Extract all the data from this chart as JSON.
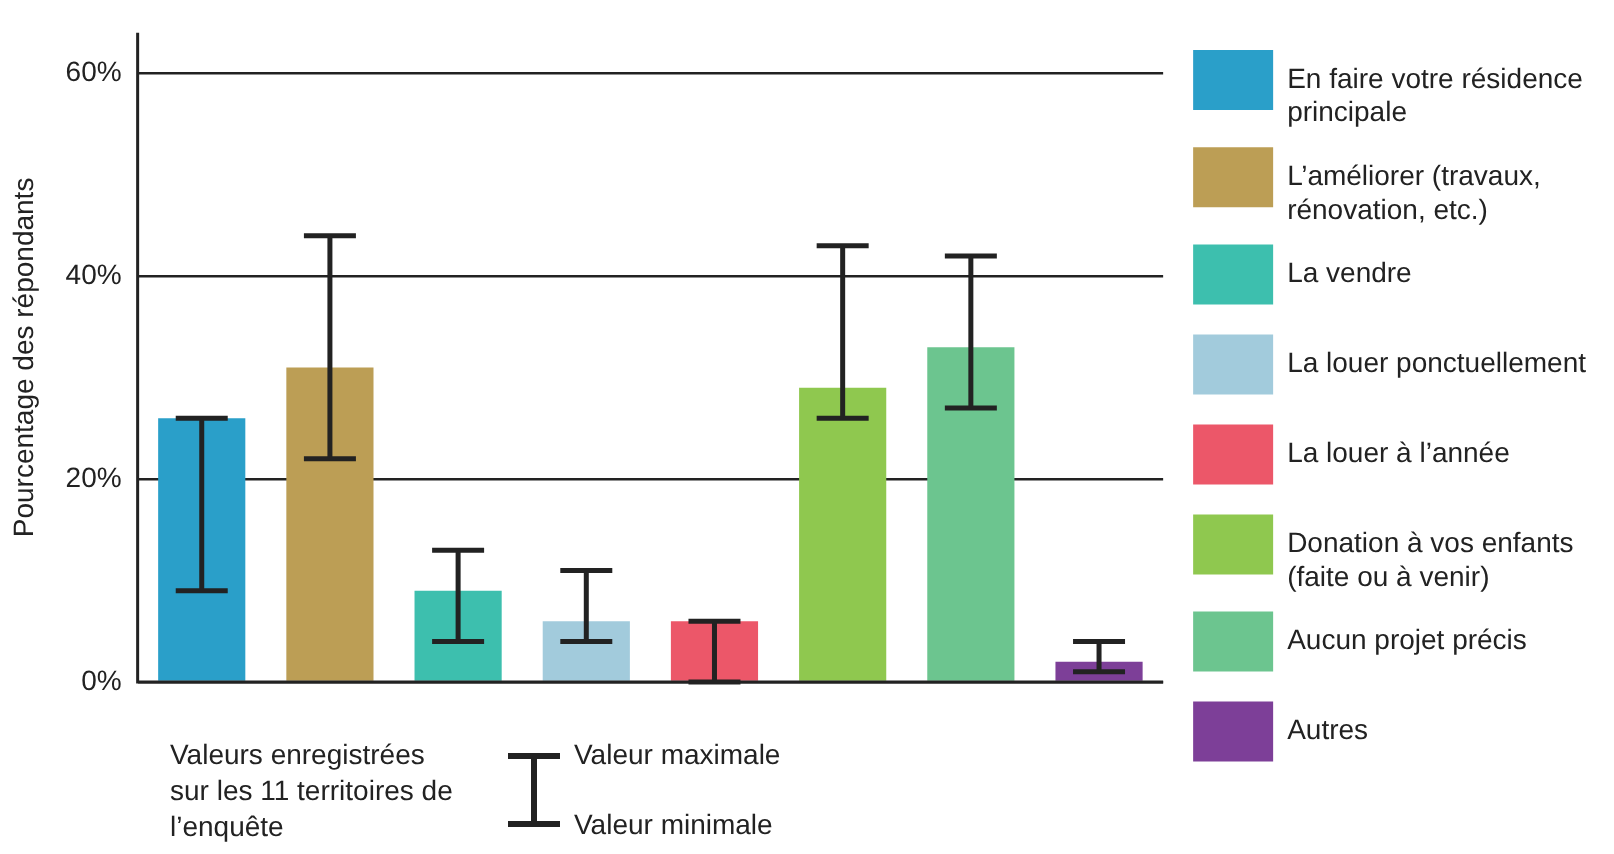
{
  "chart_data": {
    "type": "bar",
    "ylabel": "Pourcentage des répondants",
    "categories": [
      null,
      null,
      null,
      null,
      null,
      null,
      null,
      null
    ],
    "series": [
      {
        "name": "En faire votre résidence principale",
        "color": "#2a9fc9",
        "values": [
          26,
          null,
          null,
          null,
          null,
          null,
          null,
          null
        ],
        "errors": [
          [
            9,
            26
          ],
          null,
          null,
          null,
          null,
          null,
          null,
          null
        ]
      },
      {
        "name": "L’améliorer (travaux, rénovation, etc.)",
        "color": "#bc9e55",
        "values": [
          null,
          31,
          null,
          null,
          null,
          null,
          null,
          null
        ],
        "errors": [
          null,
          [
            22,
            44
          ],
          null,
          null,
          null,
          null,
          null,
          null
        ]
      },
      {
        "name": "La vendre",
        "color": "#3dbfae",
        "values": [
          null,
          null,
          9,
          null,
          null,
          null,
          null,
          null
        ],
        "errors": [
          null,
          null,
          [
            4,
            13
          ],
          null,
          null,
          null,
          null,
          null
        ]
      },
      {
        "name": "La louer ponctuellement",
        "color": "#a2cbdc",
        "values": [
          null,
          null,
          null,
          6,
          null,
          null,
          null,
          null
        ],
        "errors": [
          null,
          null,
          null,
          [
            4,
            11
          ],
          null,
          null,
          null,
          null
        ]
      },
      {
        "name": "La louer à l’année",
        "color": "#ec5769",
        "values": [
          null,
          null,
          null,
          null,
          6,
          null,
          null,
          null
        ],
        "errors": [
          null,
          null,
          null,
          null,
          [
            0,
            6
          ],
          null,
          null,
          null
        ]
      },
      {
        "name": "Donation à vos enfants (faite ou à venir)",
        "color": "#8fc84f",
        "values": [
          null,
          null,
          null,
          null,
          null,
          29,
          null,
          null
        ],
        "errors": [
          null,
          null,
          null,
          null,
          null,
          [
            26,
            43
          ],
          null,
          null
        ]
      },
      {
        "name": "Aucun projet précis",
        "color": "#6cc58f",
        "values": [
          null,
          null,
          null,
          null,
          null,
          null,
          33,
          null
        ],
        "errors": [
          null,
          null,
          null,
          null,
          null,
          null,
          [
            27,
            42
          ],
          null
        ]
      },
      {
        "name": "Autres",
        "color": "#7d3f98",
        "values": [
          null,
          null,
          null,
          null,
          null,
          null,
          null,
          2
        ],
        "errors": [
          null,
          null,
          null,
          null,
          null,
          null,
          null,
          [
            1,
            4
          ]
        ]
      }
    ],
    "ylim": [
      0,
      64
    ],
    "yticks": [
      {
        "value": 0,
        "label": "0%"
      },
      {
        "value": 20,
        "label": "20%"
      },
      {
        "value": 40,
        "label": "40%"
      },
      {
        "value": 60,
        "label": "60%"
      }
    ],
    "grid": "y",
    "legend": "right",
    "tick_labels": "y",
    "annotations": [
      "Valeurs enregistrées sur les 11 territoires de l’enquête",
      "Valeur maximale",
      "Valeur minimale"
    ]
  }
}
